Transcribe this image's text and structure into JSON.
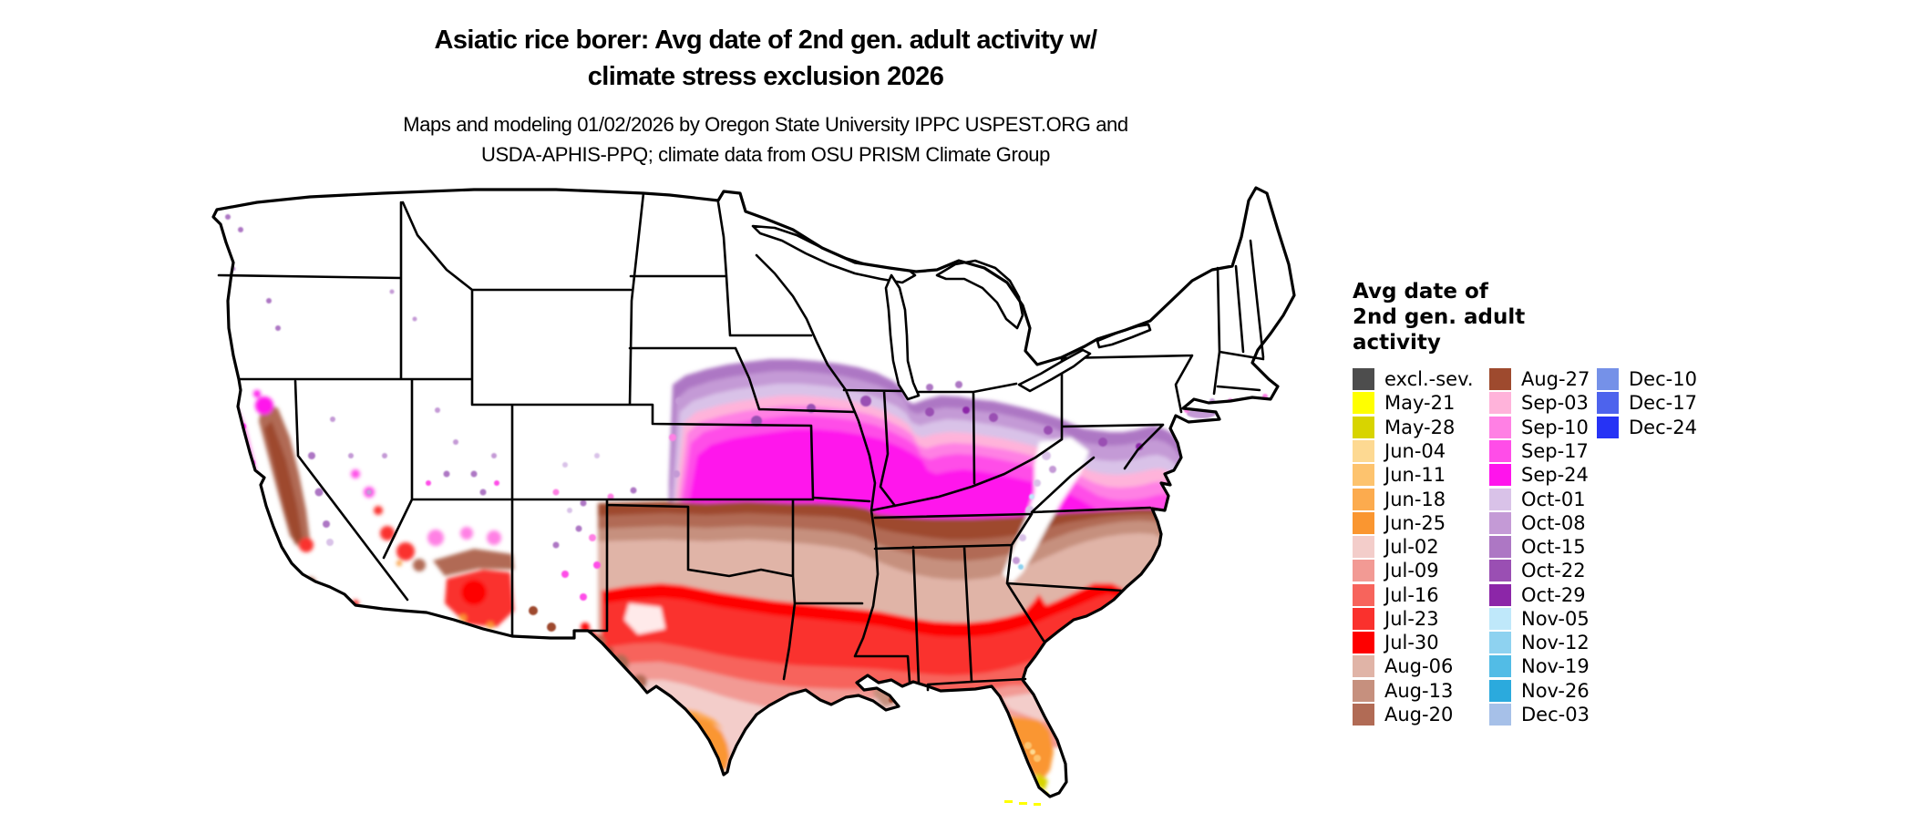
{
  "title": {
    "line1": "Asiatic rice borer: Avg date of 2nd gen. adult activity w/",
    "line2": "climate stress exclusion 2026"
  },
  "subtitle": {
    "line1": "Maps and modeling 01/02/2026 by Oregon State University IPPC USPEST.ORG and",
    "line2": "USDA-APHIS-PPQ; climate data from OSU PRISM Climate Group"
  },
  "legend": {
    "title_lines": [
      "Avg date of",
      "2nd gen. adult",
      "activity"
    ],
    "columns": [
      15,
      15,
      3
    ],
    "entries": [
      {
        "label": "excl.-sev.",
        "color": "#4d4d4d"
      },
      {
        "label": "May-21",
        "color": "#ffff00"
      },
      {
        "label": "May-28",
        "color": "#d8d400"
      },
      {
        "label": "Jun-04",
        "color": "#fdd992"
      },
      {
        "label": "Jun-11",
        "color": "#fdc36e"
      },
      {
        "label": "Jun-18",
        "color": "#fcab4e"
      },
      {
        "label": "Jun-25",
        "color": "#fa9630"
      },
      {
        "label": "Jul-02",
        "color": "#f3cdca"
      },
      {
        "label": "Jul-09",
        "color": "#f29a94"
      },
      {
        "label": "Jul-16",
        "color": "#f7645c"
      },
      {
        "label": "Jul-23",
        "color": "#fa312d"
      },
      {
        "label": "Jul-30",
        "color": "#fe0000"
      },
      {
        "label": "Aug-06",
        "color": "#e0b4a7"
      },
      {
        "label": "Aug-13",
        "color": "#c6907e"
      },
      {
        "label": "Aug-20",
        "color": "#b16b55"
      },
      {
        "label": "Aug-27",
        "color": "#9e4a2e"
      },
      {
        "label": "Sep-03",
        "color": "#ffb3da"
      },
      {
        "label": "Sep-10",
        "color": "#ff80e4"
      },
      {
        "label": "Sep-17",
        "color": "#ff4de8"
      },
      {
        "label": "Sep-24",
        "color": "#ff14ec"
      },
      {
        "label": "Oct-01",
        "color": "#d9c2e8"
      },
      {
        "label": "Oct-08",
        "color": "#c49ad6"
      },
      {
        "label": "Oct-15",
        "color": "#ad77c4"
      },
      {
        "label": "Oct-22",
        "color": "#9a4fb3"
      },
      {
        "label": "Oct-29",
        "color": "#8c26a8"
      },
      {
        "label": "Nov-05",
        "color": "#bfe8fa"
      },
      {
        "label": "Nov-12",
        "color": "#8ed2f0"
      },
      {
        "label": "Nov-19",
        "color": "#52bce6"
      },
      {
        "label": "Nov-26",
        "color": "#2baadd"
      },
      {
        "label": "Dec-03",
        "color": "#a6c0e8"
      },
      {
        "label": "Dec-10",
        "color": "#7591e8"
      },
      {
        "label": "Dec-17",
        "color": "#4d63ed"
      },
      {
        "label": "Dec-24",
        "color": "#2633f5"
      }
    ]
  },
  "map": {
    "area_label": "Contiguous United States"
  }
}
